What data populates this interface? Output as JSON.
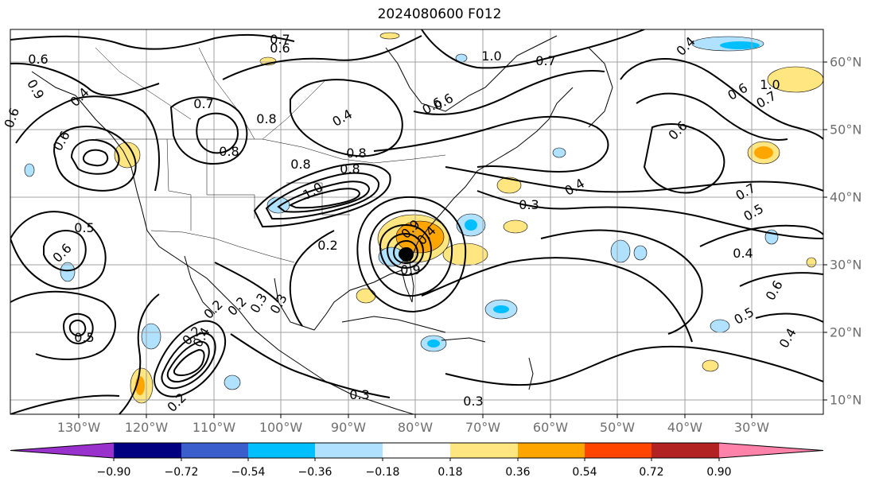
{
  "title": "2024080600 F012",
  "lon_labels": [
    "130°W",
    "120°W",
    "110°W",
    "100°W",
    "90°W",
    "80°W",
    "70°W",
    "60°W",
    "50°W",
    "40°W",
    "30°W"
  ],
  "lat_labels": [
    "60°N",
    "50°N",
    "40°N",
    "30°N",
    "20°N",
    "10°N"
  ],
  "colorbar": {
    "tick_labels": [
      "−0.90",
      "−0.72",
      "−0.54",
      "−0.36",
      "−0.18",
      "0.18",
      "0.36",
      "0.54",
      "0.72",
      "0.90"
    ],
    "colors": [
      "#9932cc",
      "#000080",
      "#3a5fcd",
      "#00bfff",
      "#b0e2ff",
      "#ffffff",
      "#ffe680",
      "#ffa500",
      "#ff4500",
      "#b22222",
      "#ff82ab"
    ]
  },
  "contour_labels": [
    "0.6",
    "0.7",
    "0.6",
    "1.0",
    "0.7",
    "0.6",
    "0.4",
    "0.6",
    "0.7",
    "1.0",
    "0.4",
    "0.6",
    "0.7",
    "0.8",
    "0.6",
    "0.8",
    "0.8",
    "0.8",
    "0.8",
    "0.9",
    "1.0",
    "0.6",
    "0.6",
    "0.4",
    "0.4",
    "0.7",
    "0.5",
    "0.3",
    "0.2",
    "0.5",
    "0.2",
    "0.4",
    "0.6",
    "0.9",
    "0.2",
    "0.4",
    "0.3",
    "0.2",
    "0.5",
    "0.3",
    "0.2",
    "0.3",
    "0.6",
    "0.4",
    "0.5",
    "0.4",
    "0.3",
    "0.9"
  ]
}
